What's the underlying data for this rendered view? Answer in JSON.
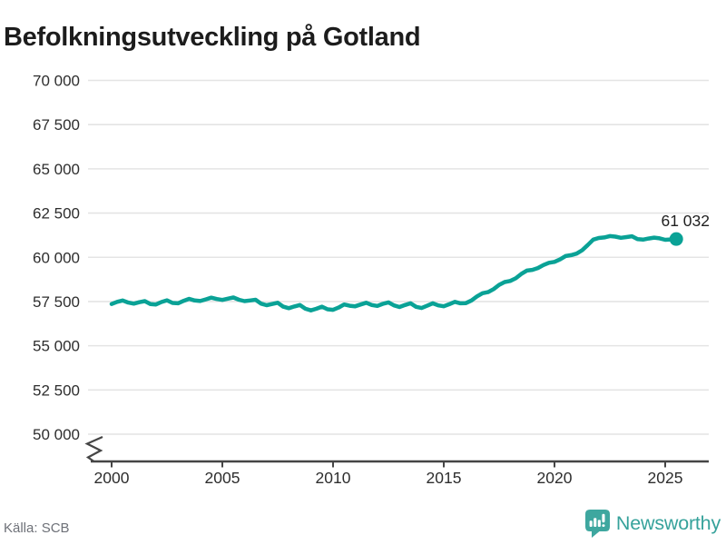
{
  "title": "Befolkningsutveckling på Gotland",
  "footer": {
    "source": "Källa: SCB",
    "brand": "Newsworthy"
  },
  "colors": {
    "line": "#0aa296",
    "logo_teal": "#3ea79f",
    "wordmark_teal": "#36a29b",
    "grid": "#e4e4e4",
    "axis": "#454545",
    "tick_text": "#2e2e2e",
    "annotation_text": "#1f1f1f",
    "muted_text": "#6e7178"
  },
  "chart_data": {
    "type": "line",
    "title": "Befolkningsutveckling på Gotland",
    "xlabel": "",
    "ylabel": "",
    "x_start": 2000,
    "x_step": 0.25,
    "x_end": 2025.5,
    "ylim": [
      50000,
      70000
    ],
    "grid": "horizontal",
    "axis_break_at_y_bottom": true,
    "legend": "none",
    "x_ticks": [
      {
        "v": 2000,
        "label": "2000"
      },
      {
        "v": 2005,
        "label": "2005"
      },
      {
        "v": 2010,
        "label": "2010"
      },
      {
        "v": 2015,
        "label": "2015"
      },
      {
        "v": 2020,
        "label": "2020"
      },
      {
        "v": 2025,
        "label": "2025"
      }
    ],
    "y_ticks": [
      {
        "v": 50000,
        "label": "50 000"
      },
      {
        "v": 52500,
        "label": "52 500"
      },
      {
        "v": 55000,
        "label": "55 000"
      },
      {
        "v": 57500,
        "label": "57 500"
      },
      {
        "v": 60000,
        "label": "60 000"
      },
      {
        "v": 62500,
        "label": "62 500"
      },
      {
        "v": 65000,
        "label": "65 000"
      },
      {
        "v": 67500,
        "label": "67 500"
      },
      {
        "v": 70000,
        "label": "70 000"
      }
    ],
    "last_point_label": "61 032",
    "last_point_value": 61032,
    "values": [
      57360,
      57480,
      57560,
      57440,
      57380,
      57460,
      57520,
      57360,
      57330,
      57470,
      57570,
      57420,
      57400,
      57540,
      57650,
      57560,
      57530,
      57620,
      57720,
      57640,
      57590,
      57660,
      57730,
      57600,
      57520,
      57560,
      57600,
      57380,
      57290,
      57360,
      57430,
      57210,
      57120,
      57220,
      57300,
      57090,
      57000,
      57090,
      57210,
      57060,
      57030,
      57160,
      57330,
      57260,
      57230,
      57330,
      57430,
      57300,
      57250,
      57370,
      57450,
      57280,
      57190,
      57300,
      57400,
      57200,
      57130,
      57260,
      57400,
      57280,
      57230,
      57350,
      57480,
      57400,
      57410,
      57560,
      57790,
      57970,
      58030,
      58200,
      58440,
      58600,
      58660,
      58810,
      59060,
      59250,
      59290,
      59390,
      59560,
      59690,
      59740,
      59880,
      60070,
      60120,
      60210,
      60400,
      60690,
      61000,
      61090,
      61120,
      61200,
      61170,
      61100,
      61140,
      61190,
      61030,
      61000,
      61060,
      61110,
      61070,
      60990,
      61010,
      61032
    ]
  }
}
